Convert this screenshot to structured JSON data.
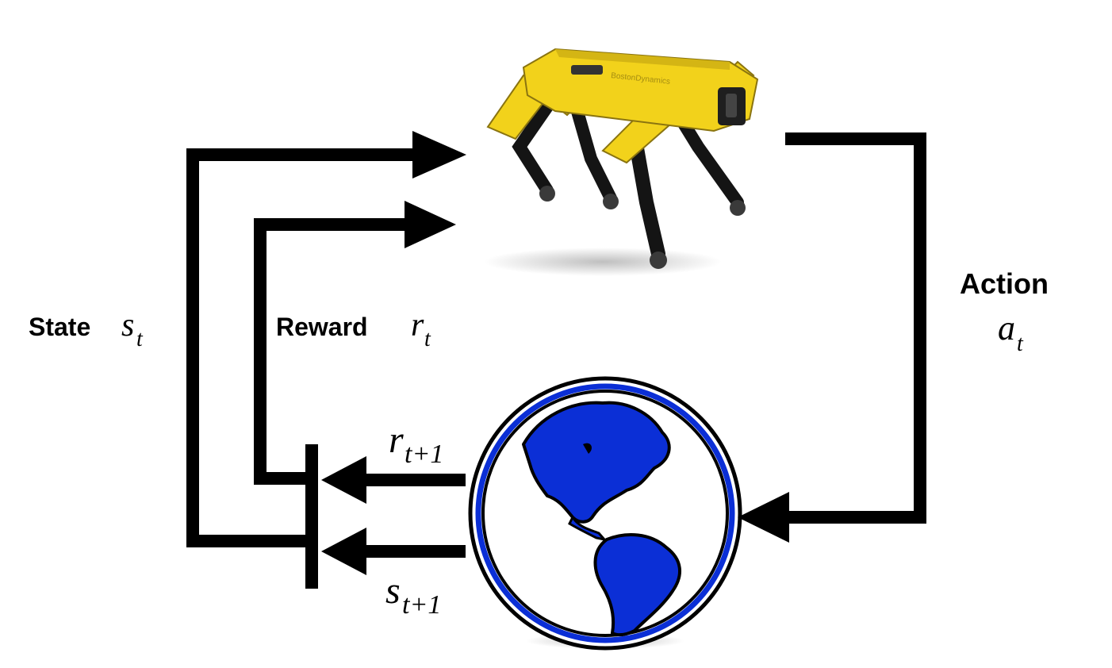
{
  "agent": {
    "brand_text": "BostonDynamics",
    "color": "#f2d21b"
  },
  "environment": {
    "land_color": "#0b2fd6",
    "ring_color": "#0b2fd6"
  },
  "labels": {
    "state": {
      "word": "State",
      "symbol": "s",
      "subscript": "t"
    },
    "reward": {
      "word": "Reward",
      "symbol": "r",
      "subscript": "t"
    },
    "action": {
      "word": "Action",
      "symbol": "a",
      "subscript": "t"
    },
    "next_reward": {
      "symbol": "r",
      "subscript": "t+1"
    },
    "next_state": {
      "symbol": "s",
      "subscript": "t+1"
    }
  }
}
